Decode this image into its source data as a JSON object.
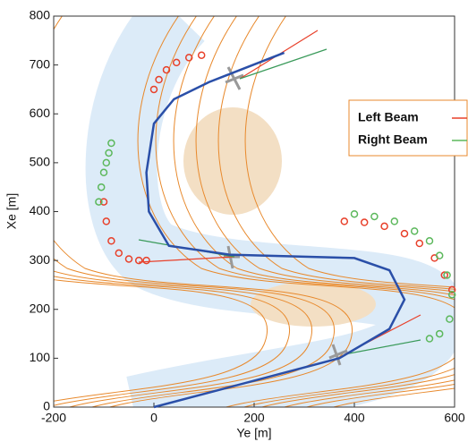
{
  "chart_data": {
    "type": "scatter",
    "xlabel": "Ye [m]",
    "ylabel": "Xe [m]",
    "xlim": [
      -200,
      600
    ],
    "xticks": [
      -200,
      0,
      200,
      400,
      600
    ],
    "ylim": [
      0,
      800
    ],
    "yticks": [
      0,
      100,
      200,
      300,
      400,
      500,
      600,
      700,
      800
    ],
    "path": {
      "color": "#2a4fa8",
      "x": [
        0,
        370,
        470,
        500,
        470,
        400,
        150,
        30,
        -10,
        -15,
        0,
        40,
        110,
        160,
        260
      ],
      "y": [
        0,
        100,
        160,
        220,
        280,
        305,
        312,
        330,
        400,
        480,
        580,
        630,
        665,
        685,
        725
      ]
    },
    "series": [
      {
        "name": "Left Beam",
        "color": "#e8402a",
        "x": [
          0,
          10,
          25,
          45,
          70,
          95,
          -100,
          -95,
          -85,
          -70,
          -50,
          -30,
          -15,
          380,
          420,
          460,
          500,
          530,
          560,
          580,
          595
        ],
        "values": [
          650,
          670,
          690,
          705,
          715,
          720,
          420,
          380,
          340,
          315,
          303,
          300,
          300,
          380,
          378,
          370,
          355,
          335,
          305,
          270,
          240
        ]
      },
      {
        "name": "Right Beam",
        "color": "#5cb85c",
        "x": [
          -110,
          -105,
          -100,
          -95,
          -90,
          -85,
          400,
          440,
          480,
          520,
          550,
          570,
          585,
          595,
          590,
          570,
          550
        ],
        "values": [
          420,
          450,
          480,
          500,
          520,
          540,
          395,
          390,
          380,
          360,
          340,
          310,
          270,
          230,
          180,
          150,
          140
        ]
      }
    ]
  }
}
